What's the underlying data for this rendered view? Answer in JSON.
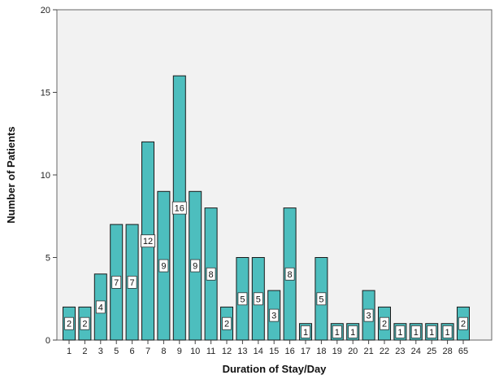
{
  "chart_data": {
    "type": "bar",
    "xlabel": "Duration of Stay/Day",
    "ylabel": "Number of Patients",
    "ylim": [
      0,
      20
    ],
    "yticks": [
      0,
      5,
      10,
      15,
      20
    ],
    "grid": false,
    "show_data_labels": true,
    "categories": [
      "1",
      "2",
      "3",
      "5",
      "6",
      "7",
      "8",
      "9",
      "10",
      "11",
      "12",
      "13",
      "14",
      "15",
      "16",
      "17",
      "18",
      "19",
      "20",
      "21",
      "22",
      "23",
      "24",
      "25",
      "28",
      "65"
    ],
    "values": [
      2,
      2,
      4,
      7,
      7,
      12,
      9,
      16,
      9,
      8,
      2,
      5,
      5,
      3,
      8,
      1,
      5,
      1,
      1,
      3,
      2,
      1,
      1,
      1,
      1,
      2
    ],
    "colors": {
      "bar_fill": "#4DBEBE",
      "bar_stroke": "#1a1a1a",
      "plot_background": "#f2f2f2",
      "plot_border": "#666666"
    }
  }
}
